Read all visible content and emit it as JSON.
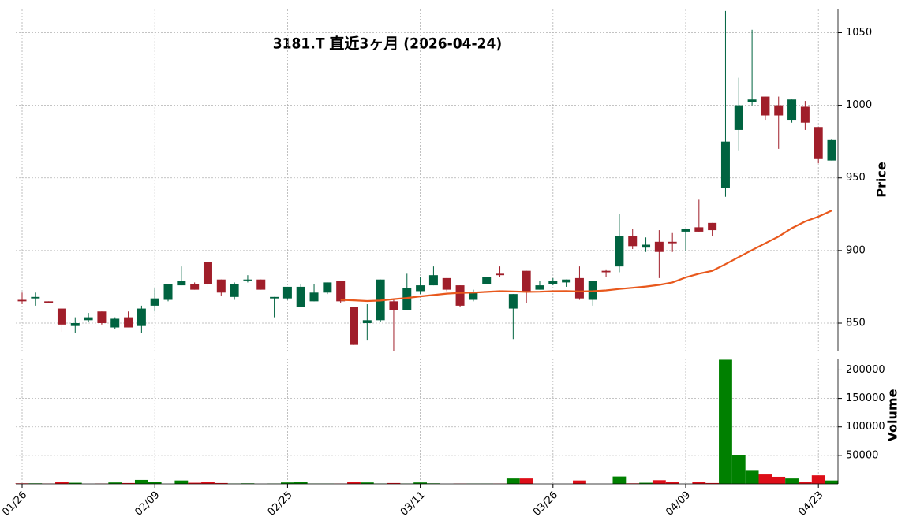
{
  "chart_data": {
    "type": "candlestick",
    "title": "3181.T  直近3ヶ月  (2026-04-24)",
    "ylabel": "Price",
    "y2label": "Volume",
    "categories": [
      "01/26",
      null,
      null,
      null,
      null,
      null,
      null,
      null,
      null,
      null,
      "02/09",
      null,
      null,
      null,
      null,
      null,
      null,
      null,
      null,
      null,
      "02/25",
      null,
      null,
      null,
      null,
      null,
      null,
      null,
      null,
      null,
      "03/11",
      null,
      null,
      null,
      null,
      null,
      null,
      null,
      null,
      null,
      "03/26",
      null,
      null,
      null,
      null,
      null,
      null,
      null,
      null,
      null,
      "04/09",
      null,
      null,
      null,
      null,
      null,
      null,
      null,
      null,
      null,
      "04/23",
      null
    ],
    "open": [
      866,
      867,
      865,
      860,
      848,
      852,
      858,
      847,
      854,
      848,
      862,
      866,
      876,
      877,
      892,
      880,
      868,
      880,
      880,
      867,
      867,
      861,
      865,
      871,
      879,
      861,
      850,
      852,
      865,
      859,
      872,
      876,
      881,
      876,
      866,
      877,
      884,
      860,
      886,
      873,
      877,
      878,
      881,
      866,
      886,
      889,
      910,
      902,
      906,
      906,
      913,
      916,
      919,
      943,
      983,
      1002,
      1006,
      1000,
      990,
      999,
      985,
      962
    ],
    "high": [
      871,
      871,
      865,
      860,
      854,
      857,
      858,
      854,
      858,
      862,
      874,
      877,
      889,
      878,
      892,
      880,
      878,
      883,
      880,
      868,
      875,
      877,
      877,
      878,
      879,
      861,
      863,
      880,
      866,
      884,
      882,
      889,
      881,
      876,
      873,
      882,
      889,
      870,
      886,
      879,
      881,
      880,
      889,
      879,
      887,
      925,
      915,
      909,
      914,
      912,
      915,
      935,
      919,
      1065,
      1019,
      1052,
      1006,
      1006,
      1004,
      1003,
      985,
      977
    ],
    "low": [
      863,
      862,
      864,
      844,
      843,
      851,
      849,
      846,
      847,
      843,
      858,
      865,
      876,
      873,
      875,
      869,
      866,
      878,
      873,
      854,
      866,
      861,
      865,
      870,
      864,
      835,
      838,
      851,
      831,
      859,
      870,
      876,
      872,
      861,
      865,
      877,
      882,
      839,
      864,
      873,
      876,
      875,
      866,
      862,
      882,
      885,
      901,
      899,
      881,
      899,
      900,
      913,
      910,
      937,
      969,
      1000,
      990,
      970,
      988,
      983,
      960,
      962
    ],
    "close": [
      865,
      868,
      864,
      849,
      850,
      854,
      850,
      853,
      847,
      860,
      867,
      877,
      879,
      873,
      877,
      871,
      877,
      880,
      873,
      868,
      875,
      875,
      871,
      878,
      865,
      835,
      852,
      880,
      859,
      874,
      876,
      883,
      873,
      862,
      871,
      882,
      883,
      870,
      872,
      876,
      879,
      880,
      867,
      879,
      885,
      910,
      903,
      904,
      899,
      905,
      915,
      913,
      914,
      975,
      1000,
      1004,
      993,
      993,
      1004,
      988,
      963,
      976
    ],
    "up_color": "#006340",
    "down_color": "#a01e2a",
    "ma": {
      "color": "#e8581c",
      "values": [
        null,
        null,
        null,
        null,
        null,
        null,
        null,
        null,
        null,
        null,
        null,
        null,
        null,
        null,
        null,
        null,
        null,
        null,
        null,
        null,
        null,
        null,
        null,
        null,
        866,
        865.7,
        865.2,
        865.5,
        866.5,
        867.3,
        868.4,
        869.3,
        870.3,
        870.8,
        871,
        871.5,
        872,
        871.8,
        871.5,
        871.6,
        872,
        872.1,
        871.8,
        872,
        872.5,
        873.5,
        874.3,
        875.2,
        876.3,
        878,
        881.5,
        884,
        886,
        890.6,
        895.5,
        900.3,
        905,
        909.6,
        915.4,
        920,
        923.3,
        927.5
      ]
    },
    "volume": [
      1000,
      1000,
      500,
      4000,
      2000,
      0,
      500,
      2500,
      1500,
      7000,
      4000,
      0,
      6000,
      2000,
      3500,
      1500,
      500,
      1000,
      0,
      500,
      2500,
      4000,
      500,
      500,
      500,
      3000,
      2500,
      500,
      1500,
      500,
      2500,
      1000,
      0,
      500,
      500,
      500,
      500,
      9500,
      9500,
      0,
      0,
      0,
      6000,
      0,
      0,
      13000,
      1000,
      2000,
      6500,
      3000,
      0,
      4000,
      1500,
      218000,
      50000,
      23000,
      16500,
      12500,
      9500,
      4000,
      15000,
      6000
    ],
    "volume_up_color": "#008000",
    "volume_down_color": "#dd0e18",
    "ylim": [
      831,
      1066
    ],
    "yticks": [
      850,
      900,
      950,
      1000,
      1050
    ],
    "y2lim": [
      0,
      220000
    ],
    "y2ticks": [
      50000,
      100000,
      150000,
      200000
    ],
    "grid": true
  }
}
